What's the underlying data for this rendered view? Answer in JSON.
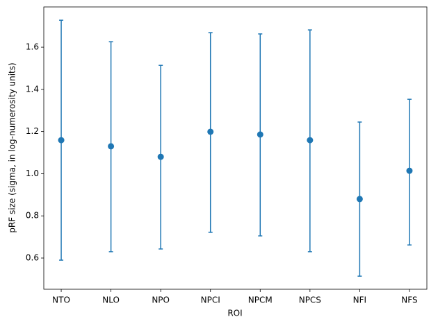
{
  "chart_data": {
    "type": "errorbar",
    "categories": [
      "NTO",
      "NLO",
      "NPO",
      "NPCI",
      "NPCM",
      "NPCS",
      "NFI",
      "NFS"
    ],
    "values": [
      1.159,
      1.13,
      1.08,
      1.199,
      1.186,
      1.159,
      0.88,
      1.014
    ],
    "lower": [
      0.59,
      0.63,
      0.643,
      0.722,
      0.705,
      0.63,
      0.514,
      0.662
    ],
    "upper": [
      1.728,
      1.626,
      1.514,
      1.669,
      1.663,
      1.682,
      1.245,
      1.353
    ],
    "color": "#1f77b4",
    "xlabel": "ROI",
    "ylabel": "pRF size (sigma, in log-numerosity units)",
    "ylim": [
      0.452,
      1.791
    ],
    "yticks": [
      0.6,
      0.8,
      {
        "value": 1,
        "label": "1.0"
      },
      1.2,
      1.4,
      1.6
    ]
  }
}
